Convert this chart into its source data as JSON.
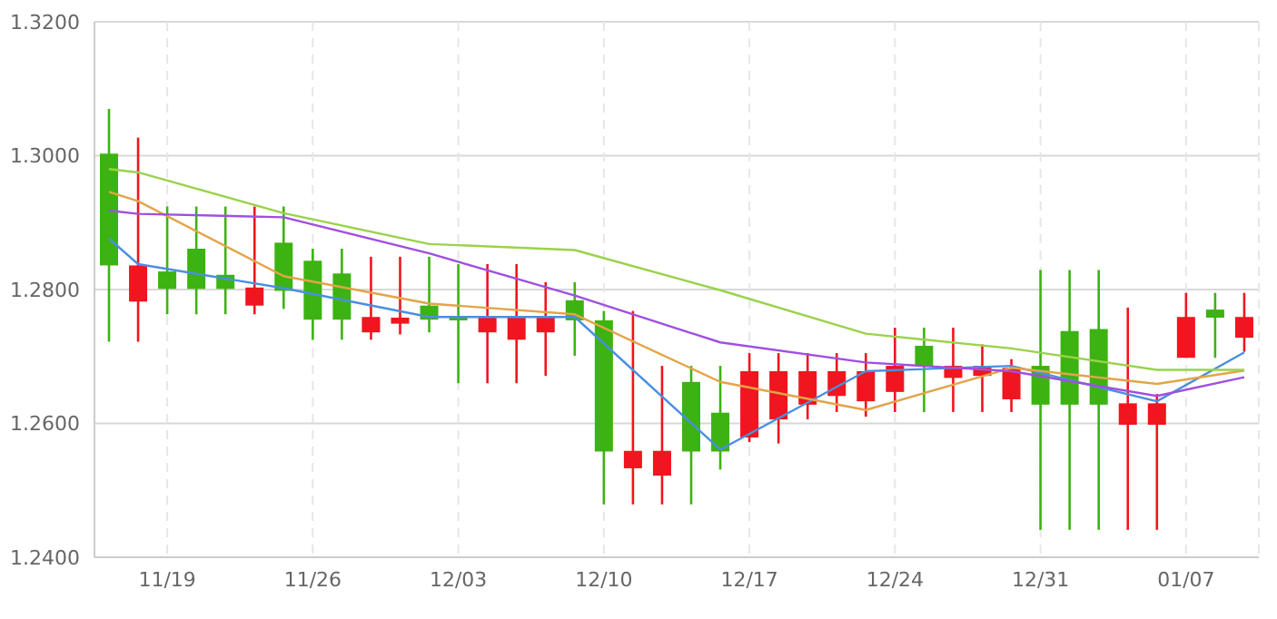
{
  "chart_data": {
    "type": "candlestick",
    "categories": [
      null,
      null,
      "11/19",
      null,
      null,
      null,
      null,
      "11/26",
      null,
      null,
      null,
      null,
      "12/03",
      null,
      null,
      null,
      null,
      "12/10",
      null,
      null,
      null,
      null,
      "12/17",
      null,
      null,
      null,
      null,
      "12/24",
      null,
      null,
      null,
      null,
      "12/31",
      null,
      null,
      null,
      null,
      "01/07",
      null,
      null
    ],
    "ohlc": [
      [
        1.2836,
        1.307,
        1.2722,
        1.3003
      ],
      [
        1.2836,
        1.3027,
        1.2722,
        1.2782
      ],
      [
        1.2801,
        1.2924,
        1.2763,
        1.2827
      ],
      [
        1.2801,
        1.2924,
        1.2763,
        1.2861
      ],
      [
        1.2801,
        1.2924,
        1.2763,
        1.2822
      ],
      [
        1.2803,
        1.2924,
        1.2763,
        1.2776
      ],
      [
        1.2798,
        1.2924,
        1.2771,
        1.287
      ],
      [
        1.2755,
        1.2861,
        1.2725,
        1.2843
      ],
      [
        1.2755,
        1.2861,
        1.2725,
        1.2824
      ],
      [
        1.2759,
        1.2849,
        1.2725,
        1.2736
      ],
      [
        1.2758,
        1.2849,
        1.2733,
        1.2749
      ],
      [
        1.2755,
        1.2849,
        1.2736,
        1.2776
      ],
      [
        1.2757,
        1.2838,
        1.266,
        1.2758
      ],
      [
        1.2758,
        1.2838,
        1.266,
        1.2736
      ],
      [
        1.2758,
        1.2838,
        1.266,
        1.2725
      ],
      [
        1.2758,
        1.2811,
        1.2671,
        1.2736
      ],
      [
        1.2754,
        1.2811,
        1.2701,
        1.2784
      ],
      [
        1.2558,
        1.2768,
        1.2479,
        1.2754
      ],
      [
        1.2559,
        1.2768,
        1.2479,
        1.2533
      ],
      [
        1.2559,
        1.2686,
        1.2479,
        1.2522
      ],
      [
        1.2558,
        1.2686,
        1.2479,
        1.2662
      ],
      [
        1.2558,
        1.2686,
        1.2531,
        1.2616
      ],
      [
        1.2678,
        1.2705,
        1.2572,
        1.2579
      ],
      [
        1.2678,
        1.2705,
        1.257,
        1.2606
      ],
      [
        1.2678,
        1.2705,
        1.2606,
        1.2628
      ],
      [
        1.2678,
        1.2705,
        1.2617,
        1.2641
      ],
      [
        1.2678,
        1.2705,
        1.261,
        1.2633
      ],
      [
        1.2686,
        1.2743,
        1.2617,
        1.2647
      ],
      [
        1.2685,
        1.2743,
        1.2617,
        1.2716
      ],
      [
        1.2686,
        1.2743,
        1.2617,
        1.2668
      ],
      [
        1.2686,
        1.2718,
        1.2617,
        1.2671
      ],
      [
        1.2683,
        1.2696,
        1.2617,
        1.2636
      ],
      [
        1.2628,
        1.2829,
        1.2441,
        1.2686
      ],
      [
        1.2628,
        1.2829,
        1.2441,
        1.2738
      ],
      [
        1.2628,
        1.2829,
        1.2441,
        1.2741
      ],
      [
        1.263,
        1.2773,
        1.2441,
        1.2598
      ],
      [
        1.263,
        1.2644,
        1.2441,
        1.2598
      ],
      [
        1.2759,
        1.2795,
        1.2698,
        1.2698
      ],
      [
        1.2758,
        1.2795,
        1.2698,
        1.277
      ],
      [
        1.2759,
        1.2795,
        1.2707,
        1.2728
      ]
    ],
    "colors": [
      "#3cb312",
      "#f0151e",
      "#3cb312",
      "#3cb312",
      "#3cb312",
      "#f0151e",
      "#3cb312",
      "#3cb312",
      "#3cb312",
      "#f0151e",
      "#f0151e",
      "#3cb312",
      "#3cb312",
      "#f0151e",
      "#f0151e",
      "#f0151e",
      "#3cb312",
      "#3cb312",
      "#f0151e",
      "#f0151e",
      "#3cb312",
      "#3cb312",
      "#f0151e",
      "#f0151e",
      "#f0151e",
      "#f0151e",
      "#f0151e",
      "#f0151e",
      "#3cb312",
      "#f0151e",
      "#f0151e",
      "#f0151e",
      "#3cb312",
      "#3cb312",
      "#3cb312",
      "#f0151e",
      "#f0151e",
      "#f0151e",
      "#3cb312",
      "#f0151e"
    ],
    "series": [
      {
        "type": "line",
        "color": "#4a8fe0",
        "values": [
          1.2876,
          1.2838,
          null,
          null,
          null,
          null,
          1.2802,
          null,
          null,
          null,
          null,
          1.2759,
          null,
          null,
          null,
          null,
          1.2759,
          null,
          null,
          null,
          null,
          1.2561,
          null,
          null,
          null,
          null,
          1.2678,
          null,
          null,
          null,
          null,
          1.2686,
          null,
          null,
          null,
          null,
          1.2633,
          null,
          null,
          1.2706
        ]
      },
      {
        "type": "line",
        "color": "#e3a448",
        "values": [
          1.2946,
          1.2932,
          null,
          null,
          null,
          null,
          1.282,
          null,
          null,
          null,
          null,
          1.2779,
          null,
          null,
          null,
          null,
          1.2763,
          null,
          null,
          null,
          null,
          1.2662,
          null,
          null,
          null,
          null,
          1.262,
          null,
          null,
          null,
          null,
          1.2683,
          null,
          null,
          null,
          null,
          1.2659,
          null,
          null,
          1.2679
        ]
      },
      {
        "type": "line",
        "color": "#a04fe0",
        "values": [
          1.2918,
          1.2913,
          null,
          null,
          null,
          null,
          1.2908,
          null,
          null,
          null,
          null,
          1.2854,
          null,
          null,
          null,
          null,
          1.2791,
          null,
          null,
          null,
          null,
          1.2721,
          null,
          null,
          null,
          null,
          1.2691,
          null,
          null,
          null,
          null,
          1.2678,
          null,
          null,
          null,
          null,
          1.2641,
          null,
          null,
          1.2669
        ]
      },
      {
        "type": "line",
        "color": "#9ad24c",
        "values": [
          1.298,
          1.2975,
          null,
          null,
          null,
          null,
          1.2914,
          null,
          null,
          null,
          null,
          1.2868,
          null,
          null,
          null,
          null,
          1.2859,
          null,
          null,
          null,
          null,
          1.2799,
          null,
          null,
          null,
          null,
          1.2734,
          null,
          null,
          null,
          null,
          1.2712,
          null,
          null,
          null,
          null,
          1.268,
          null,
          null,
          1.268
        ]
      }
    ],
    "ylim": [
      1.24,
      1.32
    ],
    "yticks": [
      {
        "value": 1.24,
        "label": "1.2400"
      },
      {
        "value": 1.26,
        "label": "1.2600"
      },
      {
        "value": 1.28,
        "label": "1.2800"
      },
      {
        "value": 1.3,
        "label": "1.3000"
      },
      {
        "value": 1.32,
        "label": "1.3200"
      }
    ],
    "grid": true,
    "legend": false
  }
}
